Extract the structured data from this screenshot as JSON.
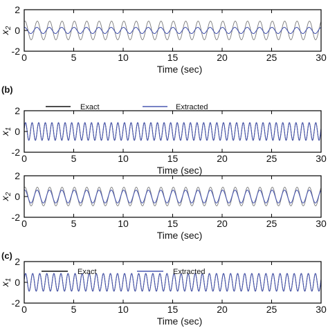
{
  "chart_data": [
    {
      "type": "line",
      "panel_label": "",
      "ylabel": "x",
      "ylabel_sub": "2",
      "xlabel": "Time (sec)",
      "xlim": [
        0,
        30
      ],
      "ylim": [
        -2,
        2
      ],
      "xticks": [
        0,
        5,
        10,
        15,
        20,
        25,
        30
      ],
      "yticks": [
        -2,
        0,
        2
      ],
      "legend": false,
      "series": [
        {
          "key": "exact",
          "color": "#7a7a7a",
          "amplitude": 0.9,
          "frequency_hz": 0.8,
          "phase": 1.2,
          "width": 0.9
        },
        {
          "key": "extracted",
          "color": "#4a58b0",
          "amplitude": 0.3,
          "frequency_hz": 0.8,
          "phase": 1.4,
          "width": 1.1
        }
      ]
    },
    {
      "type": "line",
      "panel_label": "(b)",
      "ylabel": "x",
      "ylabel_sub": "1",
      "xlabel": "Time (sec)",
      "xlim": [
        0,
        30
      ],
      "ylim": [
        -2,
        2
      ],
      "xticks": [
        0,
        5,
        10,
        15,
        20,
        25,
        30
      ],
      "yticks": [
        -2,
        0,
        2
      ],
      "legend": true,
      "series": [
        {
          "key": "exact",
          "name": "Exact",
          "color": "#111111",
          "amplitude": 0.85,
          "frequency_hz": 1.5,
          "phase": 0.3,
          "width": 0.9
        },
        {
          "key": "extracted",
          "name": "Extracted",
          "color": "#4a58b0",
          "amplitude": 0.85,
          "frequency_hz": 1.5,
          "phase": 0.35,
          "width": 1.1
        }
      ]
    },
    {
      "type": "line",
      "panel_label": "",
      "ylabel": "x",
      "ylabel_sub": "2",
      "xlabel": "Time (sec)",
      "xlim": [
        0,
        30
      ],
      "ylim": [
        -2,
        2
      ],
      "xticks": [
        0,
        5,
        10,
        15,
        20,
        25,
        30
      ],
      "yticks": [
        -2,
        0,
        2
      ],
      "legend": false,
      "series": [
        {
          "key": "exact",
          "color": "#7a7a7a",
          "amplitude": 0.9,
          "frequency_hz": 0.8,
          "phase": 1.2,
          "width": 0.9
        },
        {
          "key": "extracted",
          "color": "#4a58b0",
          "amplitude": 0.62,
          "frequency_hz": 0.8,
          "phase": 1.3,
          "width": 1.1
        }
      ]
    },
    {
      "type": "line",
      "panel_label": "(c)",
      "ylabel": "x",
      "ylabel_sub": "1",
      "xlabel": "Time (sec)",
      "xlim": [
        0,
        30
      ],
      "ylim": [
        -2,
        2
      ],
      "xticks": [
        0,
        5,
        10,
        15,
        20,
        25,
        30
      ],
      "yticks": [
        -2,
        0,
        2
      ],
      "legend": true,
      "series": [
        {
          "key": "exact",
          "name": "Exact",
          "color": "#111111",
          "amplitude": 0.85,
          "frequency_hz": 1.4,
          "phase": 0.3,
          "width": 0.9
        },
        {
          "key": "extracted",
          "name": "Extracted",
          "color": "#4a58b0",
          "amplitude": 0.85,
          "frequency_hz": 1.4,
          "phase": 0.35,
          "width": 1.1
        }
      ]
    }
  ]
}
